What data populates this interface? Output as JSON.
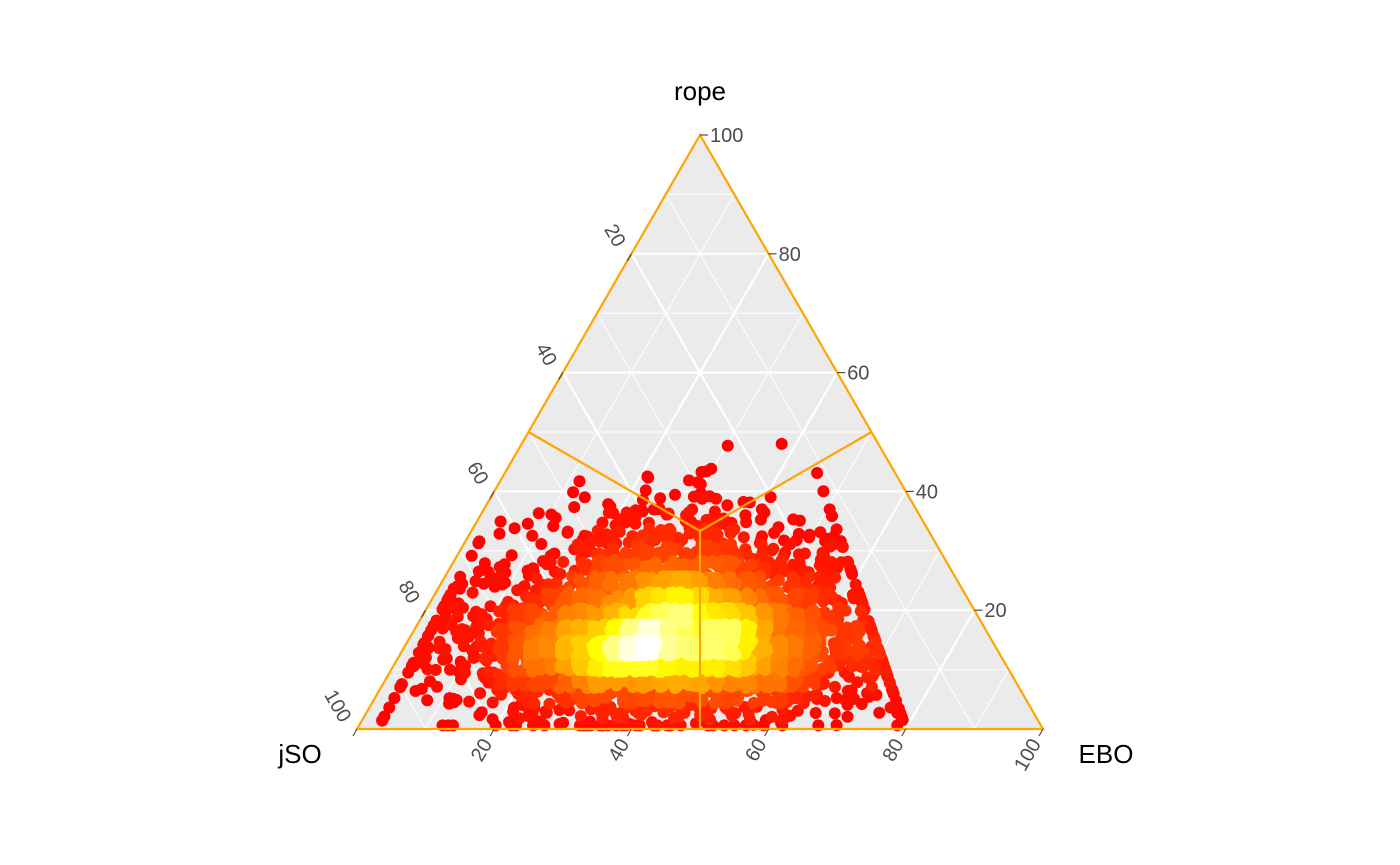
{
  "chart_data": {
    "type": "scatter",
    "subtype": "ternary",
    "title": "",
    "axes": {
      "top": {
        "label": "rope"
      },
      "left": {
        "label": "jSO"
      },
      "right": {
        "label": "EBO"
      }
    },
    "tick_labels": [
      "20",
      "40",
      "60",
      "80",
      "100"
    ],
    "range": [
      0,
      100
    ],
    "grid": true,
    "grid_step": 10,
    "colors": {
      "panel": "#ebebeb",
      "grid": "#ffffff",
      "border": "#ffa500",
      "divider": "#ffa500",
      "density_low": "#ff0000",
      "density_mid": "#ffff00",
      "density_high": "#ffffff"
    },
    "divider_lines": "each axis midpoint to the barycenter (33.3, 33.3, 33.3)",
    "points_summary": {
      "count_approx": 3500,
      "center": {
        "jSO": 47,
        "EBO": 38,
        "rope": 15
      },
      "rope_range": [
        0,
        50
      ],
      "note": "dense cloud of points colored by local density (red = sparse, yellow/white = dense)"
    }
  }
}
